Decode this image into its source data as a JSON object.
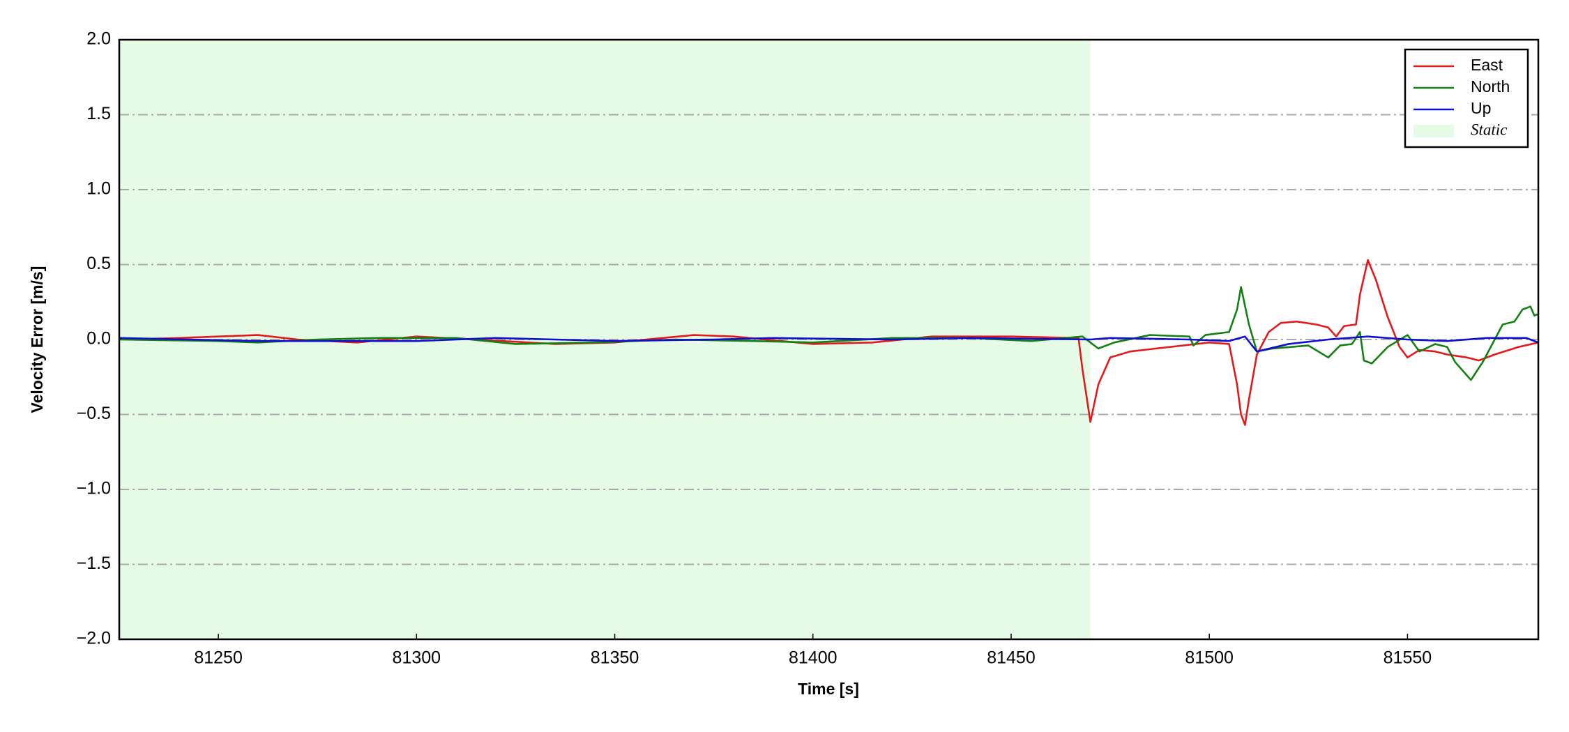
{
  "chart_data": {
    "type": "line",
    "xlabel": "Time [s]",
    "ylabel": "Velocity Error [m/s]",
    "xlim": [
      81225,
      81583
    ],
    "xticks": [
      81250,
      81300,
      81350,
      81400,
      81450,
      81500,
      81550
    ],
    "ylim": [
      -2.0,
      2.0
    ],
    "yticks": [
      {
        "value": -2.0,
        "label": "−2.0"
      },
      {
        "value": -1.5,
        "label": "−1.5"
      },
      {
        "value": -1.0,
        "label": "−1.0"
      },
      {
        "value": -0.5,
        "label": "−0.5"
      },
      {
        "value": 0,
        "label": "0.0"
      },
      0.5,
      {
        "value": 1.0,
        "label": "1.0"
      },
      1.5,
      {
        "value": 2.0,
        "label": "2.0"
      }
    ],
    "grid": true,
    "legend": "upper right",
    "shaded_region": {
      "x": [
        81225,
        81470
      ],
      "label": "Static",
      "color": "#e6fbe6"
    },
    "series": [
      {
        "name": "East",
        "color": "#e31a1c",
        "x": [
          81225,
          81240,
          81260,
          81270,
          81285,
          81300,
          81315,
          81335,
          81350,
          81370,
          81380,
          81400,
          81415,
          81430,
          81450,
          81467,
          81468,
          81470,
          81472,
          81475,
          81480,
          81490,
          81500,
          81505,
          81507,
          81508,
          81509,
          81510,
          81512,
          81515,
          81518,
          81522,
          81527,
          81530,
          81532,
          81534,
          81537,
          81538,
          81540,
          81542,
          81545,
          81548,
          81550,
          81553,
          81557,
          81560,
          81565,
          81568,
          81572,
          81578,
          81583
        ],
        "values": [
          0,
          0.01,
          0.03,
          0,
          -0.02,
          0.02,
          0,
          -0.03,
          -0.02,
          0.03,
          0.02,
          -0.03,
          -0.02,
          0.02,
          0.02,
          0.01,
          -0.2,
          -0.55,
          -0.3,
          -0.12,
          -0.08,
          -0.05,
          -0.02,
          -0.03,
          -0.3,
          -0.5,
          -0.57,
          -0.4,
          -0.1,
          0.05,
          0.11,
          0.12,
          0.1,
          0.08,
          0.02,
          0.09,
          0.1,
          0.3,
          0.53,
          0.4,
          0.15,
          -0.05,
          -0.12,
          -0.07,
          -0.08,
          -0.1,
          -0.12,
          -0.14,
          -0.1,
          -0.05,
          -0.02
        ]
      },
      {
        "name": "North",
        "color": "#138013",
        "x": [
          81225,
          81250,
          81260,
          81275,
          81290,
          81310,
          81325,
          81345,
          81365,
          81385,
          81400,
          81420,
          81440,
          81455,
          81468,
          81472,
          81476,
          81485,
          81495,
          81496,
          81499,
          81505,
          81507,
          81508,
          81510,
          81512,
          81516,
          81525,
          81530,
          81533,
          81536,
          81538,
          81539,
          81541,
          81545,
          81550,
          81553,
          81557,
          81560,
          81562,
          81566,
          81569,
          81574,
          81577,
          81579,
          81581,
          81582,
          81583
        ],
        "values": [
          0,
          -0.01,
          -0.02,
          0,
          0.01,
          0.01,
          -0.03,
          -0.02,
          0,
          -0.01,
          -0.02,
          0.01,
          0.01,
          -0.01,
          0.02,
          -0.06,
          -0.02,
          0.03,
          0.02,
          -0.04,
          0.03,
          0.05,
          0.2,
          0.35,
          0.1,
          -0.08,
          -0.06,
          -0.04,
          -0.12,
          -0.04,
          -0.03,
          0.05,
          -0.14,
          -0.16,
          -0.05,
          0.03,
          -0.08,
          -0.03,
          -0.05,
          -0.15,
          -0.27,
          -0.15,
          0.1,
          0.12,
          0.2,
          0.22,
          0.16,
          0.17
        ]
      },
      {
        "name": "Up",
        "color": "#1010d0",
        "x": [
          81225,
          81260,
          81300,
          81320,
          81350,
          81375,
          81390,
          81420,
          81440,
          81470,
          81475,
          81495,
          81505,
          81509,
          81512,
          81520,
          81530,
          81540,
          81550,
          81560,
          81570,
          81580,
          81583
        ],
        "values": [
          0.01,
          -0.01,
          -0.01,
          0.01,
          -0.01,
          0,
          0.01,
          0,
          0.01,
          0,
          0.01,
          0,
          -0.01,
          0.02,
          -0.08,
          -0.03,
          0,
          0.02,
          0,
          -0.01,
          0.01,
          0.01,
          -0.02
        ]
      }
    ]
  }
}
